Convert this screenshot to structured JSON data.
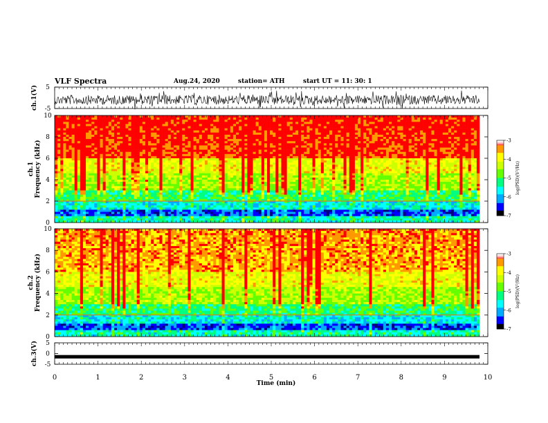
{
  "header": {
    "title": "VLF Spectra",
    "date": "Aug.24, 2020",
    "station": "station= ATH",
    "start": "start  UT =   11: 30: 1"
  },
  "chart_data": [
    {
      "type": "line",
      "panel": "ch1-waveform",
      "ylabel": "ch.1(V)",
      "ylim": [
        -5,
        5
      ],
      "yticks": [
        "5",
        "-5"
      ],
      "xlim": [
        0,
        10
      ]
    },
    {
      "type": "heatmap",
      "panel": "ch1-spectrogram",
      "ylabel": "ch.1\nFrequency  (kHz)",
      "ylim": [
        0,
        10
      ],
      "yticks": [
        "0",
        "2",
        "4",
        "6",
        "8",
        "10"
      ],
      "xlim": [
        0,
        10
      ],
      "colorbar": {
        "label": "log(PSD)(V²/Hz)",
        "range": [
          -7,
          -3
        ],
        "ticks": [
          "-3",
          "-4",
          "-5",
          "-6",
          "-7"
        ]
      }
    },
    {
      "type": "heatmap",
      "panel": "ch2-spectrogram",
      "ylabel": "ch.2\nFrequency  (kHz)",
      "ylim": [
        0,
        10
      ],
      "yticks": [
        "0",
        "2",
        "4",
        "6",
        "8",
        "10"
      ],
      "xlim": [
        0,
        10
      ],
      "colorbar": {
        "label": "log(PSD)(V²/Hz)",
        "range": [
          -7,
          -3
        ],
        "ticks": [
          "-3",
          "-4",
          "-5",
          "-6",
          "-7"
        ]
      }
    },
    {
      "type": "line",
      "panel": "ch3-waveform",
      "ylabel": "ch.3(V)",
      "ylim": [
        -5,
        5
      ],
      "yticks": [
        "5",
        "0",
        "-5"
      ],
      "xlim": [
        0,
        10
      ],
      "series_level": -1.5
    }
  ],
  "xaxis": {
    "label": "Time  (min)",
    "ticks": [
      "0",
      "1",
      "2",
      "3",
      "4",
      "5",
      "6",
      "7",
      "8",
      "9",
      "10"
    ]
  },
  "colors": {
    "spectrum": [
      "#000080",
      "#0000ff",
      "#00aaff",
      "#00ffff",
      "#00ff80",
      "#66ff00",
      "#ccff00",
      "#ffff00",
      "#ff9900",
      "#ff0000"
    ]
  }
}
